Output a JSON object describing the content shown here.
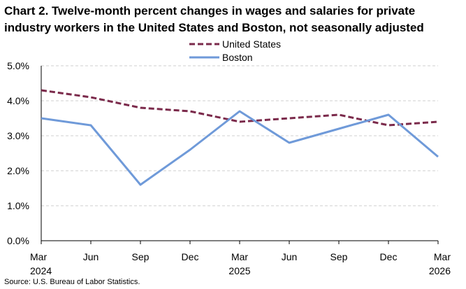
{
  "chart_data": {
    "type": "line",
    "title": "Chart 2. Twelve-month percent changes in wages and salaries for private industry workers in the United States and Boston, not seasonally adjusted",
    "categories": [
      "Mar 2024",
      "Jun",
      "Sep",
      "Dec",
      "Mar 2025",
      "Jun",
      "Sep",
      "Dec",
      "Mar 2026"
    ],
    "x_tick_labels": [
      [
        "Mar",
        "2024"
      ],
      [
        "Jun"
      ],
      [
        "Sep"
      ],
      [
        "Dec"
      ],
      [
        "Mar",
        "2025"
      ],
      [
        "Jun"
      ],
      [
        "Sep"
      ],
      [
        "Dec"
      ],
      [
        "Mar",
        "2026"
      ]
    ],
    "y_tick_labels": [
      "0.0%",
      "1.0%",
      "2.0%",
      "3.0%",
      "4.0%",
      "5.0%"
    ],
    "ylim": [
      0,
      5
    ],
    "y_unit": "%",
    "grid": "horizontal dashed",
    "legend_placement": "top-center",
    "series": [
      {
        "name": "United States",
        "values": [
          4.3,
          4.1,
          3.8,
          3.7,
          3.4,
          3.5,
          3.6,
          3.3,
          3.4
        ],
        "color": "#7b2a4b",
        "style": "dashed"
      },
      {
        "name": "Boston",
        "values": [
          3.5,
          3.3,
          1.6,
          2.6,
          3.7,
          2.8,
          3.2,
          3.6,
          2.4
        ],
        "color": "#6f9ad9",
        "style": "solid"
      }
    ],
    "source": "Source: U.S. Bureau of Labor Statistics."
  }
}
